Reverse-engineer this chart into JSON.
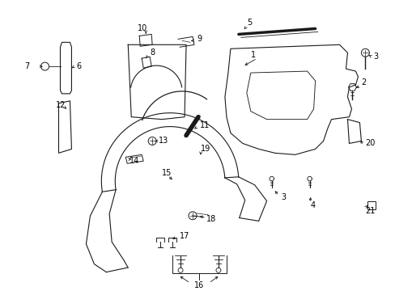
{
  "bg_color": "#ffffff",
  "line_color": "#1a1a1a",
  "fig_width": 4.89,
  "fig_height": 3.6,
  "dpi": 100,
  "font_size": 7.0
}
